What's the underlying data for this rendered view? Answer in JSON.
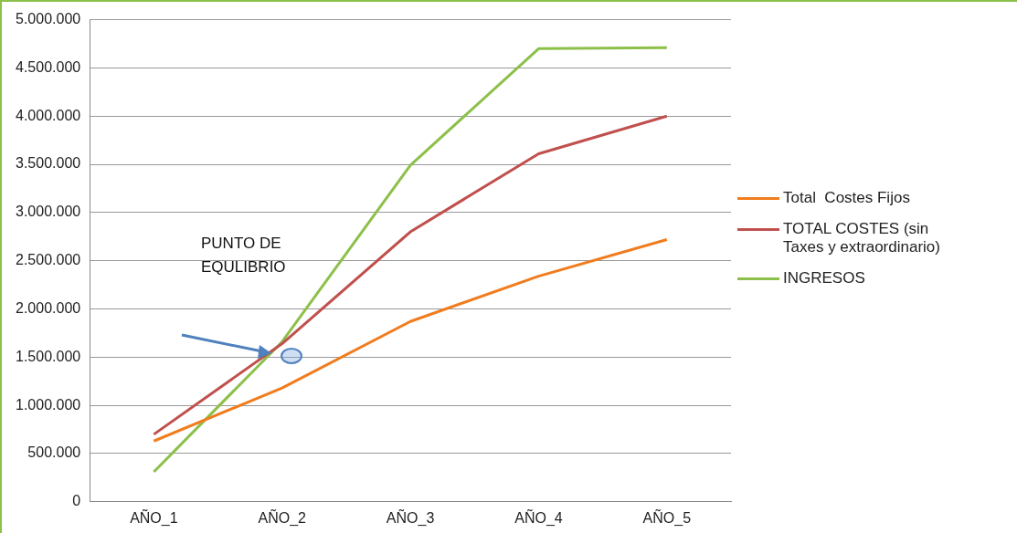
{
  "chart_data": {
    "type": "line",
    "categories": [
      "AÑO_1",
      "AÑO_2",
      "AÑO_3",
      "AÑO_4",
      "AÑO_5"
    ],
    "series": [
      {
        "name": "Total  Costes Fijos",
        "color": "#f07c1e",
        "values": [
          630000,
          1180000,
          1870000,
          2340000,
          2720000
        ]
      },
      {
        "name": "TOTAL COSTES (sin Taxes y extraordinario)",
        "color": "#c0504d",
        "values": [
          700000,
          1640000,
          2800000,
          3610000,
          4000000
        ]
      },
      {
        "name": "INGRESOS",
        "color": "#8cc04a",
        "values": [
          310000,
          1660000,
          3490000,
          4700000,
          4710000
        ]
      }
    ],
    "ylim": [
      0,
      5000000
    ],
    "yticks": [
      0,
      {
        "value": 500000,
        "label": "500.000"
      },
      {
        "value": 1000000,
        "label": "1.000.000"
      },
      {
        "value": 1500000,
        "label": "1.500.000"
      },
      {
        "value": 2000000,
        "label": "2.000.000"
      },
      {
        "value": 2500000,
        "label": "2.500.000"
      },
      {
        "value": 3000000,
        "label": "3.000.000"
      },
      {
        "value": 3500000,
        "label": "3.500.000"
      },
      {
        "value": 4000000,
        "label": "4.000.000"
      },
      {
        "value": 4500000,
        "label": "4.500.000"
      },
      {
        "value": 5000000,
        "label": "5.000.000"
      }
    ],
    "grid": "y",
    "legend": "right",
    "marker": "none",
    "line_style": "solid",
    "annotations": [
      "PUNTO DE EQULIBRIO"
    ]
  }
}
